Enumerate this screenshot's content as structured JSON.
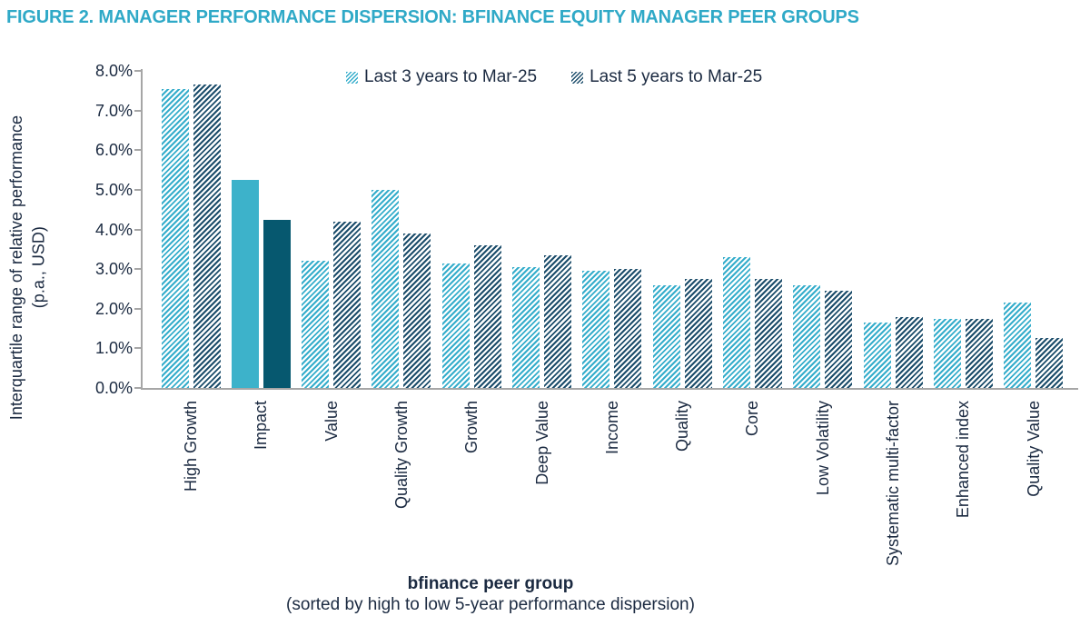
{
  "figure": {
    "title": "FIGURE 2. MANAGER PERFORMANCE DISPERSION: BFINANCE EQUITY MANAGER PEER GROUPS"
  },
  "chart_data": {
    "type": "bar",
    "title": "FIGURE 2. MANAGER PERFORMANCE DISPERSION: BFINANCE EQUITY MANAGER PEER GROUPS",
    "categories": [
      "High Growth",
      "Impact",
      "Value",
      "Quality Growth",
      "Growth",
      "Deep Value",
      "Income",
      "Quality",
      "Core",
      "Low Volatility",
      "Systematic multi-factor",
      "Enhanced index",
      "Quality Value"
    ],
    "series": [
      {
        "name": "Last 3 years to Mar-25",
        "values": [
          7.55,
          5.25,
          3.2,
          5.0,
          3.15,
          3.05,
          2.95,
          2.6,
          3.3,
          2.6,
          1.65,
          1.75,
          2.15
        ],
        "hatch_color": "#35ADCB",
        "solid_color": "#3DB2CA"
      },
      {
        "name": "Last 5 years to Mar-25",
        "values": [
          7.65,
          4.25,
          4.2,
          3.9,
          3.6,
          3.35,
          3.0,
          2.75,
          2.75,
          2.45,
          1.8,
          1.75,
          1.25
        ],
        "hatch_color": "#1C4D6B",
        "solid_color": "#06586F"
      }
    ],
    "solid_category": "Impact",
    "hatch": true,
    "grid": false,
    "legend_position": "top-center",
    "ylim": [
      0,
      8
    ],
    "ytick_step": 1,
    "ytick_suffix": "%",
    "ylabel_line1": "Interquartile range of relative performance",
    "ylabel_line2": "(p.a., USD)",
    "xlabel_bold": "bfinance peer group",
    "xlabel_sub": "(sorted by high to low 5-year performance dispersion)"
  },
  "colors": {
    "title": "#2FA9C7",
    "text": "#1B2A41",
    "axis": "#A6A6A6",
    "background": "#FFFFFF"
  }
}
